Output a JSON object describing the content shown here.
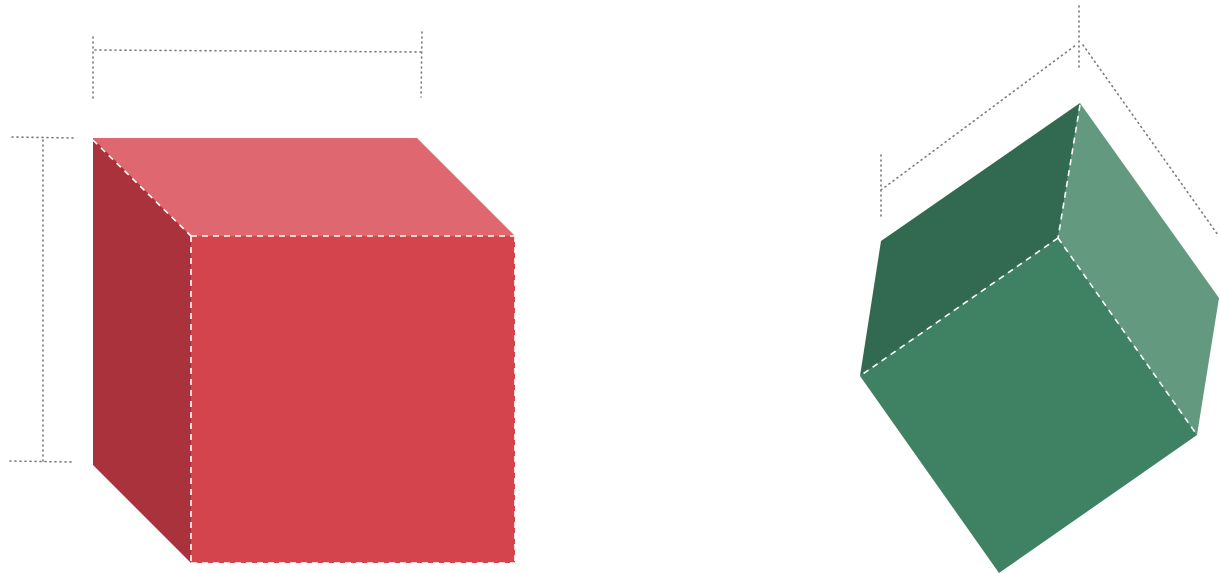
{
  "colors": {
    "background": "#ffffff",
    "dimension_line": "#7a7a7a",
    "hidden_edge": "#ffffff",
    "red_cube": {
      "top": "#df6870",
      "front": "#d4444d",
      "side": "#a9323c"
    },
    "green_cube": {
      "left_face": "#316a50",
      "front_face": "#3f8163",
      "right_face": "#639a7f"
    }
  },
  "shapes": [
    {
      "name": "red-cube",
      "view": "front-perspective",
      "faces": [
        "top",
        "front",
        "left-side"
      ]
    },
    {
      "name": "green-cube",
      "view": "rotated-isometric",
      "faces": [
        "left",
        "front",
        "right"
      ]
    }
  ]
}
